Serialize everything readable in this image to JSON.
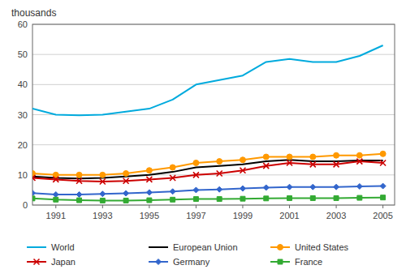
{
  "chart_data": {
    "type": "line",
    "y_label": "thousands",
    "x": [
      1990,
      1991,
      1992,
      1993,
      1994,
      1995,
      1996,
      1997,
      1998,
      1999,
      2000,
      2001,
      2002,
      2003,
      2004,
      2005
    ],
    "series": [
      {
        "name": "World",
        "color": "#00AADD",
        "marker": "none",
        "values": [
          32.0,
          30.0,
          29.8,
          30.0,
          31.0,
          32.0,
          35.0,
          40.0,
          41.5,
          43.0,
          47.5,
          48.5,
          47.5,
          47.5,
          49.5,
          53.0
        ]
      },
      {
        "name": "European Union",
        "color": "#000000",
        "marker": "none",
        "values": [
          9.5,
          9.0,
          8.8,
          9.0,
          9.5,
          10.0,
          11.0,
          12.5,
          13.0,
          13.5,
          14.5,
          15.0,
          14.5,
          14.5,
          14.8,
          14.8
        ]
      },
      {
        "name": "United States",
        "color": "#FF9900",
        "marker": "circle",
        "values": [
          10.5,
          10.0,
          10.0,
          10.0,
          10.5,
          11.5,
          12.5,
          14.0,
          14.5,
          15.0,
          16.0,
          16.0,
          16.0,
          16.5,
          16.5,
          17.0
        ]
      },
      {
        "name": "Japan",
        "color": "#CC0000",
        "marker": "x",
        "values": [
          9.0,
          8.5,
          8.0,
          7.8,
          8.0,
          8.5,
          9.0,
          10.0,
          10.5,
          11.5,
          13.0,
          14.0,
          13.5,
          13.5,
          14.5,
          14.0
        ]
      },
      {
        "name": "Germany",
        "color": "#3366CC",
        "marker": "diamond",
        "values": [
          4.0,
          3.5,
          3.5,
          3.7,
          3.9,
          4.2,
          4.5,
          5.0,
          5.2,
          5.5,
          5.8,
          6.0,
          6.0,
          6.0,
          6.2,
          6.3
        ]
      },
      {
        "name": "France",
        "color": "#33AA33",
        "marker": "square",
        "values": [
          2.2,
          1.8,
          1.6,
          1.5,
          1.5,
          1.6,
          1.8,
          2.0,
          2.0,
          2.1,
          2.2,
          2.3,
          2.3,
          2.3,
          2.4,
          2.5
        ]
      }
    ],
    "xlim": [
      1990,
      2005.5
    ],
    "xticks": [
      1991,
      1993,
      1995,
      1997,
      1999,
      2001,
      2003,
      2005
    ],
    "ylim": [
      0,
      60
    ],
    "yticks": [
      0,
      10,
      20,
      30,
      40,
      50,
      60
    ],
    "grid": true,
    "legend": "bottom"
  }
}
